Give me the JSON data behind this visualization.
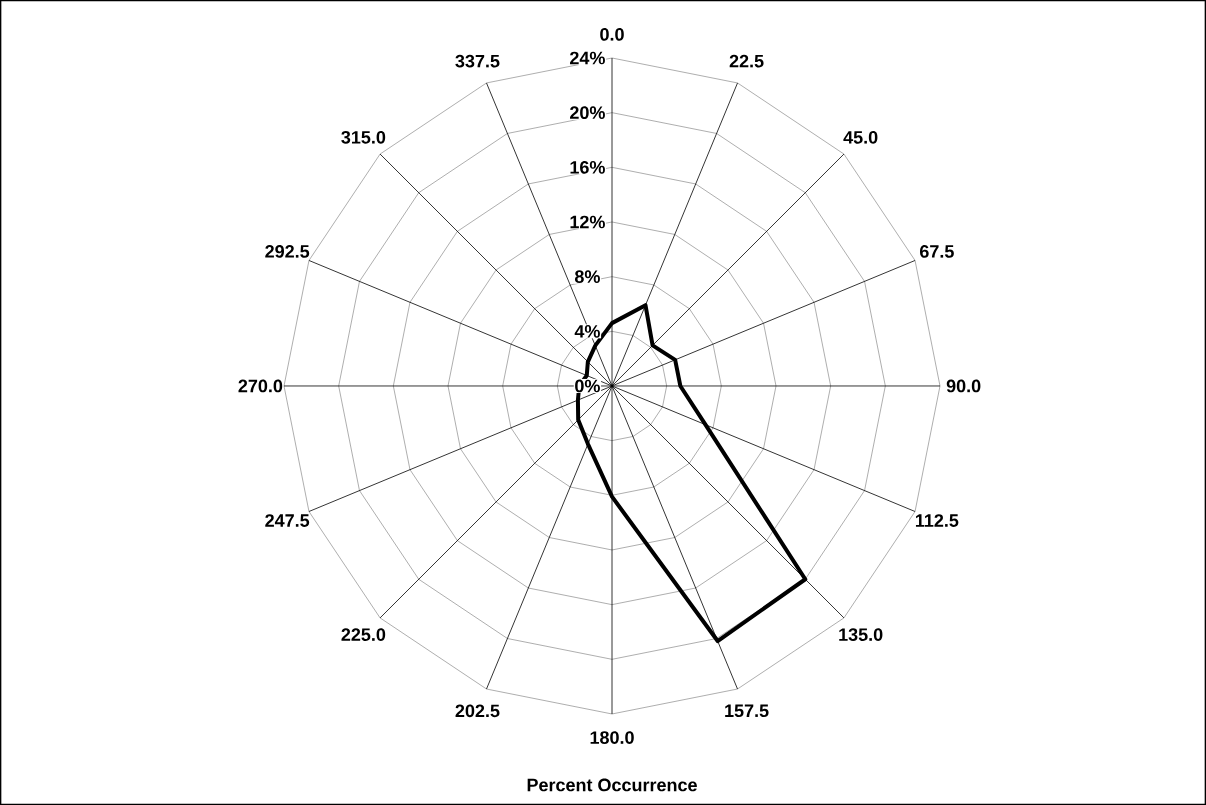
{
  "chart_data": {
    "type": "radar",
    "xlabel": "Percent Occurrence",
    "categories": [
      "0.0",
      "22.5",
      "45.0",
      "67.5",
      "90.0",
      "112.5",
      "135.0",
      "157.5",
      "180.0",
      "202.5",
      "225.0",
      "247.5",
      "270.0",
      "292.5",
      "315.0",
      "337.5"
    ],
    "series": [
      {
        "color": "#000000",
        "values": [
          4.6,
          6.4,
          4.2,
          5.0,
          5.0,
          7.4,
          20.0,
          20.2,
          8.1,
          4.6,
          3.5,
          2.7,
          2.4,
          2.0,
          2.5,
          3.2
        ]
      }
    ],
    "ylim": [
      0,
      24
    ],
    "yticks": [
      {
        "value": 0,
        "label": "0%"
      },
      {
        "value": 4,
        "label": "4%"
      },
      {
        "value": 8,
        "label": "8%"
      },
      {
        "value": 12,
        "label": "12%"
      },
      {
        "value": 16,
        "label": "16%"
      },
      {
        "value": 20,
        "label": "20%"
      },
      {
        "value": 24,
        "label": "24%"
      }
    ],
    "grid": true
  }
}
